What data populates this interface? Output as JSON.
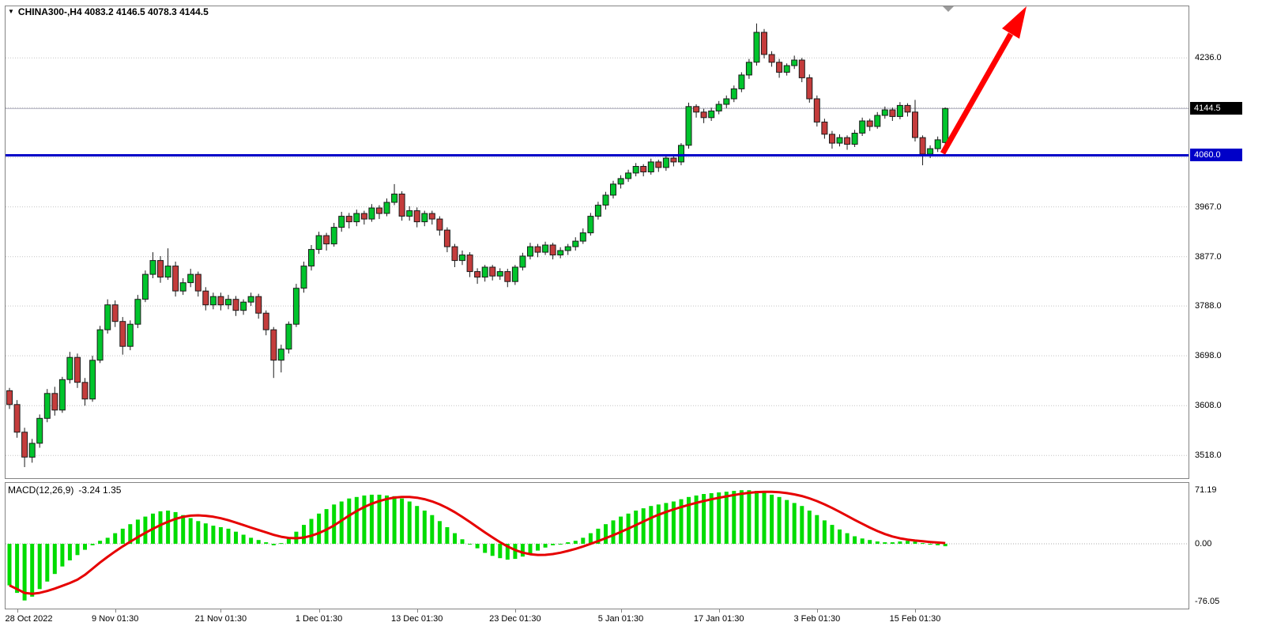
{
  "header": {
    "symbol_label": "CHINA300-,H4",
    "ohlc": "4083.2 4146.5 4078.3 4144.5",
    "collapse_icon": "triangle-down"
  },
  "colors": {
    "up": "#00C42C",
    "down": "#C43C3C",
    "candle_border": "#1A1A1A",
    "grid": "#C4C4C4",
    "bid_line": "#A8A8B8",
    "macd_bar": "#00DC00",
    "macd_signal": "#E60000",
    "hline": "#0000C8",
    "badge_bid_bg": "#000000",
    "arrow": "#FF0000",
    "pane_border": "#848484"
  },
  "chart_data": {
    "type": "candlestick",
    "symbol": "CHINA300-",
    "timeframe": "H4",
    "current_bar": {
      "open": 4083.2,
      "high": 4146.5,
      "low": 4078.3,
      "close": 4144.5
    },
    "price_range": [
      3477,
      4329
    ],
    "price_axis": {
      "gridlines": [
        4236,
        4146,
        4056,
        3967,
        3877,
        3788,
        3698,
        3608,
        3518
      ],
      "labels": [
        {
          "text": "4236.0",
          "value": 4236
        },
        {
          "text": "3967.0",
          "value": 3967
        },
        {
          "text": "3877.0",
          "value": 3877
        },
        {
          "text": "3788.0",
          "value": 3788
        },
        {
          "text": "3698.0",
          "value": 3698
        },
        {
          "text": "3608.0",
          "value": 3608
        },
        {
          "text": "3518.0",
          "value": 3518
        }
      ]
    },
    "bid_badge": {
      "text": "4144.5",
      "price": 4144.5
    },
    "hline": {
      "text": "4060.0",
      "price": 4060.0,
      "color": "#0000C8"
    },
    "annotation_arrow": {
      "type": "trend-arrow-up",
      "color": "#FF0000",
      "from_price": 4060,
      "direction": "up-right"
    },
    "time_labels": [
      {
        "text": "28 Oct 2022",
        "candle": 1
      },
      {
        "text": "9 Nov 01:30",
        "candle": 14
      },
      {
        "text": "21 Nov 01:30",
        "candle": 28
      },
      {
        "text": "1 Dec 01:30",
        "candle": 41
      },
      {
        "text": "13 Dec 01:30",
        "candle": 54
      },
      {
        "text": "23 Dec 01:30",
        "candle": 67
      },
      {
        "text": "5 Jan 01:30",
        "candle": 81
      },
      {
        "text": "17 Jan 01:30",
        "candle": 94
      },
      {
        "text": "3 Feb 01:30",
        "candle": 107
      },
      {
        "text": "15 Feb 01:30",
        "candle": 120
      }
    ],
    "candles": [
      [
        3635,
        3640,
        3602,
        3610
      ],
      [
        3610,
        3618,
        3550,
        3560
      ],
      [
        3560,
        3568,
        3497,
        3515
      ],
      [
        3515,
        3548,
        3505,
        3540
      ],
      [
        3540,
        3592,
        3532,
        3585
      ],
      [
        3585,
        3638,
        3578,
        3630
      ],
      [
        3630,
        3642,
        3590,
        3600
      ],
      [
        3600,
        3660,
        3595,
        3655
      ],
      [
        3655,
        3705,
        3648,
        3695
      ],
      [
        3695,
        3702,
        3640,
        3650
      ],
      [
        3650,
        3658,
        3608,
        3620
      ],
      [
        3620,
        3698,
        3615,
        3690
      ],
      [
        3690,
        3752,
        3685,
        3745
      ],
      [
        3745,
        3800,
        3738,
        3790
      ],
      [
        3790,
        3798,
        3750,
        3760
      ],
      [
        3760,
        3768,
        3700,
        3715
      ],
      [
        3715,
        3762,
        3708,
        3755
      ],
      [
        3755,
        3808,
        3748,
        3800
      ],
      [
        3800,
        3852,
        3795,
        3845
      ],
      [
        3845,
        3885,
        3838,
        3870
      ],
      [
        3870,
        3878,
        3830,
        3840
      ],
      [
        3840,
        3892,
        3835,
        3860
      ],
      [
        3860,
        3868,
        3805,
        3815
      ],
      [
        3815,
        3838,
        3808,
        3830
      ],
      [
        3830,
        3855,
        3822,
        3845
      ],
      [
        3845,
        3850,
        3805,
        3815
      ],
      [
        3815,
        3822,
        3780,
        3790
      ],
      [
        3790,
        3812,
        3782,
        3805
      ],
      [
        3805,
        3812,
        3780,
        3790
      ],
      [
        3790,
        3808,
        3782,
        3800
      ],
      [
        3800,
        3806,
        3770,
        3780
      ],
      [
        3780,
        3800,
        3772,
        3795
      ],
      [
        3795,
        3812,
        3788,
        3805
      ],
      [
        3805,
        3810,
        3765,
        3775
      ],
      [
        3775,
        3780,
        3735,
        3745
      ],
      [
        3745,
        3750,
        3658,
        3690
      ],
      [
        3690,
        3718,
        3668,
        3710
      ],
      [
        3710,
        3760,
        3702,
        3755
      ],
      [
        3755,
        3828,
        3750,
        3820
      ],
      [
        3820,
        3868,
        3812,
        3860
      ],
      [
        3860,
        3898,
        3852,
        3890
      ],
      [
        3890,
        3922,
        3882,
        3915
      ],
      [
        3915,
        3920,
        3888,
        3900
      ],
      [
        3900,
        3938,
        3895,
        3930
      ],
      [
        3930,
        3958,
        3922,
        3950
      ],
      [
        3950,
        3956,
        3928,
        3940
      ],
      [
        3940,
        3962,
        3932,
        3955
      ],
      [
        3955,
        3960,
        3935,
        3945
      ],
      [
        3945,
        3972,
        3940,
        3965
      ],
      [
        3965,
        3970,
        3945,
        3955
      ],
      [
        3955,
        3982,
        3950,
        3975
      ],
      [
        3975,
        4008,
        3970,
        3990
      ],
      [
        3990,
        3995,
        3942,
        3950
      ],
      [
        3950,
        3968,
        3942,
        3960
      ],
      [
        3960,
        3966,
        3930,
        3940
      ],
      [
        3940,
        3960,
        3932,
        3955
      ],
      [
        3955,
        3960,
        3935,
        3945
      ],
      [
        3945,
        3950,
        3915,
        3925
      ],
      [
        3925,
        3930,
        3885,
        3895
      ],
      [
        3895,
        3900,
        3858,
        3870
      ],
      [
        3870,
        3888,
        3862,
        3880
      ],
      [
        3880,
        3885,
        3840,
        3850
      ],
      [
        3850,
        3856,
        3828,
        3840
      ],
      [
        3840,
        3862,
        3832,
        3858
      ],
      [
        3858,
        3862,
        3834,
        3842
      ],
      [
        3842,
        3856,
        3835,
        3850
      ],
      [
        3850,
        3855,
        3822,
        3832
      ],
      [
        3832,
        3862,
        3826,
        3858
      ],
      [
        3858,
        3884,
        3852,
        3878
      ],
      [
        3878,
        3902,
        3872,
        3895
      ],
      [
        3895,
        3900,
        3876,
        3885
      ],
      [
        3885,
        3904,
        3880,
        3898
      ],
      [
        3898,
        3902,
        3872,
        3880
      ],
      [
        3880,
        3894,
        3874,
        3888
      ],
      [
        3888,
        3900,
        3880,
        3895
      ],
      [
        3895,
        3912,
        3888,
        3905
      ],
      [
        3905,
        3928,
        3900,
        3920
      ],
      [
        3920,
        3956,
        3915,
        3950
      ],
      [
        3950,
        3976,
        3944,
        3970
      ],
      [
        3970,
        3994,
        3962,
        3988
      ],
      [
        3988,
        4014,
        3982,
        4008
      ],
      [
        4008,
        4024,
        4000,
        4018
      ],
      [
        4018,
        4034,
        4012,
        4028
      ],
      [
        4028,
        4046,
        4022,
        4040
      ],
      [
        4040,
        4044,
        4022,
        4030
      ],
      [
        4030,
        4054,
        4025,
        4048
      ],
      [
        4048,
        4052,
        4030,
        4038
      ],
      [
        4038,
        4060,
        4032,
        4055
      ],
      [
        4055,
        4060,
        4040,
        4048
      ],
      [
        4048,
        4082,
        4042,
        4078
      ],
      [
        4078,
        4155,
        4072,
        4148
      ],
      [
        4148,
        4152,
        4128,
        4138
      ],
      [
        4138,
        4144,
        4118,
        4128
      ],
      [
        4128,
        4146,
        4122,
        4140
      ],
      [
        4140,
        4158,
        4134,
        4152
      ],
      [
        4152,
        4168,
        4145,
        4162
      ],
      [
        4162,
        4186,
        4156,
        4180
      ],
      [
        4180,
        4210,
        4174,
        4205
      ],
      [
        4205,
        4234,
        4198,
        4228
      ],
      [
        4228,
        4298,
        4222,
        4282
      ],
      [
        4282,
        4288,
        4235,
        4242
      ],
      [
        4242,
        4248,
        4220,
        4228
      ],
      [
        4228,
        4234,
        4200,
        4210
      ],
      [
        4210,
        4226,
        4204,
        4222
      ],
      [
        4222,
        4240,
        4216,
        4232
      ],
      [
        4232,
        4236,
        4192,
        4200
      ],
      [
        4200,
        4206,
        4155,
        4162
      ],
      [
        4162,
        4168,
        4112,
        4120
      ],
      [
        4120,
        4126,
        4090,
        4098
      ],
      [
        4098,
        4104,
        4072,
        4082
      ],
      [
        4082,
        4098,
        4076,
        4092
      ],
      [
        4092,
        4096,
        4070,
        4080
      ],
      [
        4080,
        4106,
        4075,
        4100
      ],
      [
        4100,
        4128,
        4095,
        4122
      ],
      [
        4122,
        4126,
        4104,
        4112
      ],
      [
        4112,
        4138,
        4108,
        4132
      ],
      [
        4132,
        4148,
        4126,
        4142
      ],
      [
        4142,
        4146,
        4122,
        4130
      ],
      [
        4130,
        4156,
        4125,
        4150
      ],
      [
        4150,
        4154,
        4130,
        4138
      ],
      [
        4138,
        4160,
        4085,
        4092
      ],
      [
        4092,
        4096,
        4042,
        4062
      ],
      [
        4062,
        4078,
        4055,
        4072
      ],
      [
        4072,
        4094,
        4066,
        4088
      ],
      [
        4083.2,
        4146.5,
        4078.3,
        4144.5
      ]
    ],
    "macd": {
      "label": "MACD(12,26,9)",
      "values_text": "-3.24 1.35",
      "main_value": -3.24,
      "signal_value": 1.35,
      "signal_period": 9,
      "range": [
        -85.8,
        80.6
      ],
      "axis_labels": [
        {
          "text": "71.19",
          "value": 71.19
        },
        {
          "text": "0.00",
          "value": 0
        },
        {
          "text": "-76.05",
          "value": -76.05
        }
      ],
      "histogram": [
        -55,
        -65,
        -75,
        -70,
        -60,
        -50,
        -40,
        -30,
        -22,
        -15,
        -8,
        -2,
        4,
        8,
        14,
        20,
        26,
        32,
        36,
        40,
        43,
        44,
        42,
        38,
        34,
        30,
        27,
        24,
        22,
        20,
        16,
        12,
        8,
        5,
        2,
        -2,
        1,
        8,
        16,
        25,
        33,
        40,
        46,
        52,
        56,
        60,
        62,
        64,
        65,
        65,
        64,
        63,
        60,
        56,
        50,
        44,
        38,
        30,
        22,
        14,
        6,
        0,
        -6,
        -12,
        -16,
        -19,
        -21,
        -20,
        -17,
        -13,
        -9,
        -5,
        -2,
        0,
        2,
        4,
        8,
        14,
        20,
        26,
        31,
        36,
        40,
        44,
        47,
        50,
        52,
        54,
        56,
        59,
        62,
        64,
        66,
        67,
        68,
        69,
        70,
        71,
        71,
        70,
        68,
        65,
        62,
        58,
        54,
        50,
        44,
        38,
        31,
        25,
        19,
        14,
        10,
        7,
        5,
        3,
        2,
        2,
        3,
        4,
        3,
        1,
        -1,
        -2,
        -3.24
      ]
    }
  }
}
